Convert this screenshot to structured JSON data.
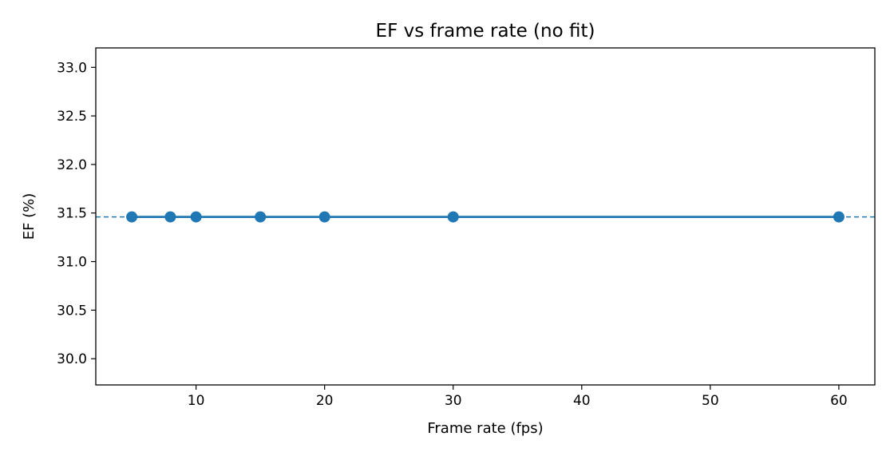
{
  "chart_data": {
    "type": "line",
    "title": "EF vs frame rate (no fit)",
    "xlabel": "Frame rate (fps)",
    "ylabel": "EF (%)",
    "xlim": [
      2.2,
      62.8
    ],
    "ylim": [
      29.73,
      33.2
    ],
    "xticks": [
      10,
      20,
      30,
      40,
      50,
      60
    ],
    "yticks": [
      30.0,
      30.5,
      31.0,
      31.5,
      32.0,
      32.5,
      33.0
    ],
    "grid": false,
    "legend": "none",
    "series": [
      {
        "x": [
          5,
          8,
          10,
          15,
          20,
          30,
          60
        ],
        "values": [
          31.46,
          31.46,
          31.46,
          31.46,
          31.46,
          31.46,
          31.46
        ],
        "color": "#1f77b4",
        "marker": "circle"
      }
    ],
    "reference_line": {
      "y": 31.46,
      "style": "dashed",
      "color": "#1f77b4"
    }
  }
}
